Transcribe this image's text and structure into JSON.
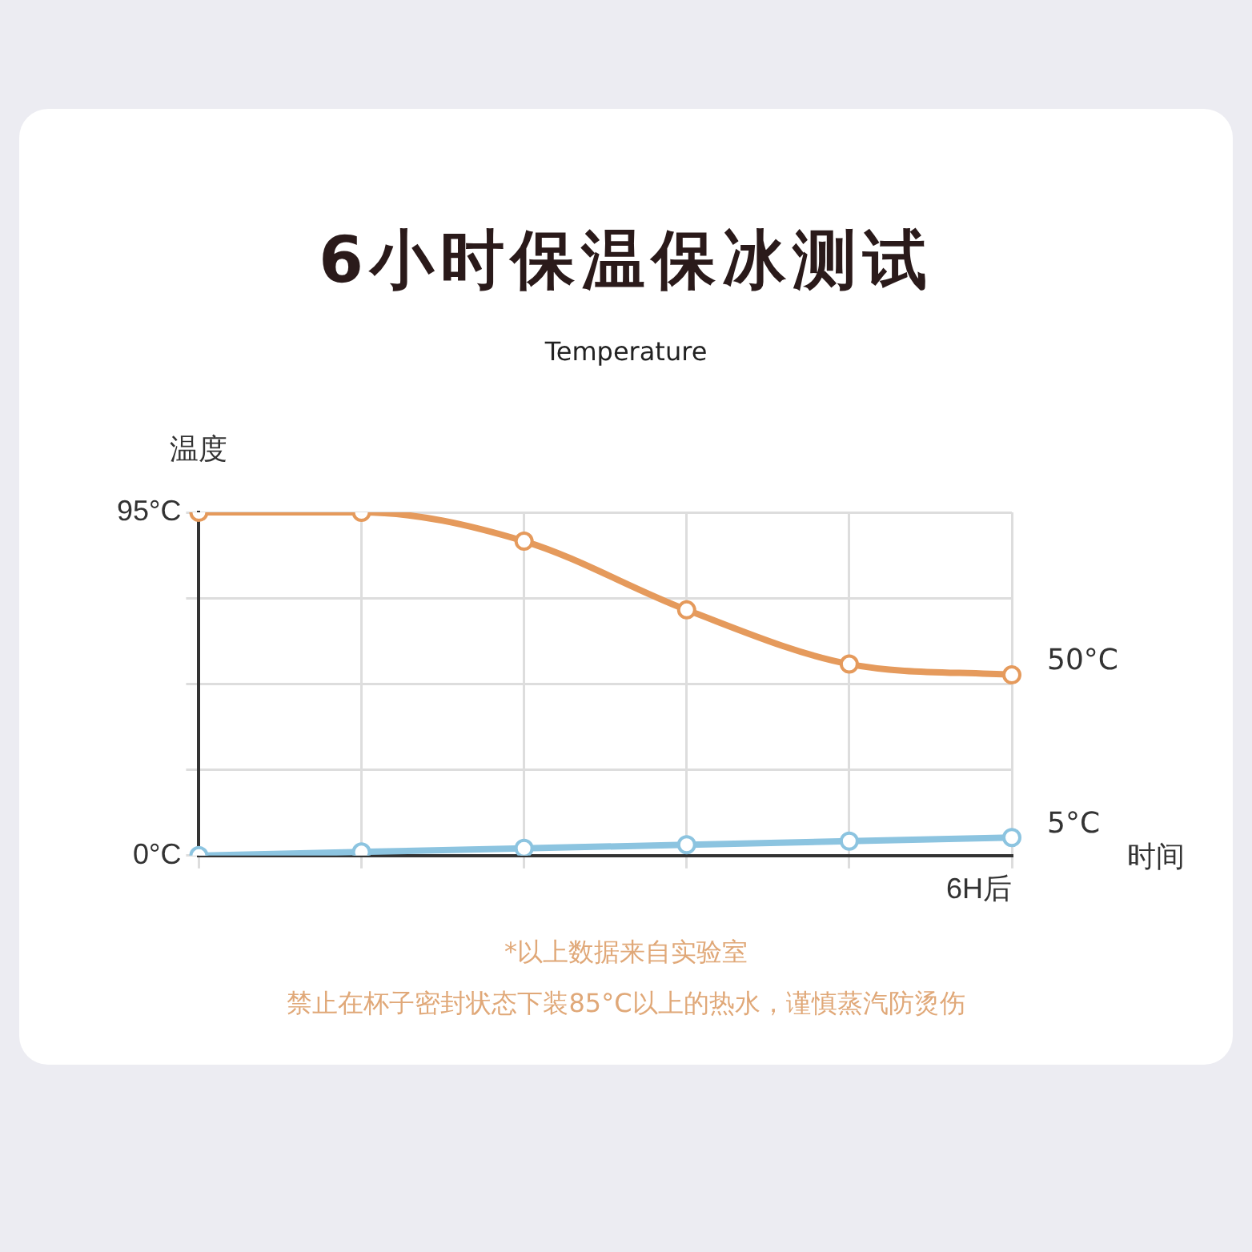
{
  "chart_data": {
    "type": "line",
    "title": "6小时保温保冰测试",
    "subtitle": "Temperature",
    "ylabel": "温度",
    "xlabel": "时间",
    "categories": [
      null,
      null,
      null,
      null,
      null,
      "6H后"
    ],
    "series": [
      {
        "color": "#e59a5c",
        "values": [
          95,
          95,
          87,
          68,
          53,
          50
        ],
        "value_labels": [
          null,
          null,
          null,
          null,
          null,
          "50°C"
        ]
      },
      {
        "color": "#8cc4e0",
        "values": [
          0,
          1,
          2,
          3,
          4,
          5
        ],
        "value_labels": [
          null,
          null,
          null,
          null,
          null,
          "5°C"
        ]
      }
    ],
    "ylim": [
      0,
      95
    ],
    "yticks": [
      {
        "value": 0,
        "label": "0°C"
      },
      {
        "value": 23.75,
        "label": null
      },
      {
        "value": 47.5,
        "label": null
      },
      {
        "value": 71.25,
        "label": null
      },
      {
        "value": 95,
        "label": "95°C"
      }
    ],
    "grid": true,
    "marker": "circle",
    "annotations": [
      "*以上数据来自实验室",
      "禁止在杯子密封状态下装85°C以上的热水，谨慎蒸汽防烫伤"
    ]
  }
}
